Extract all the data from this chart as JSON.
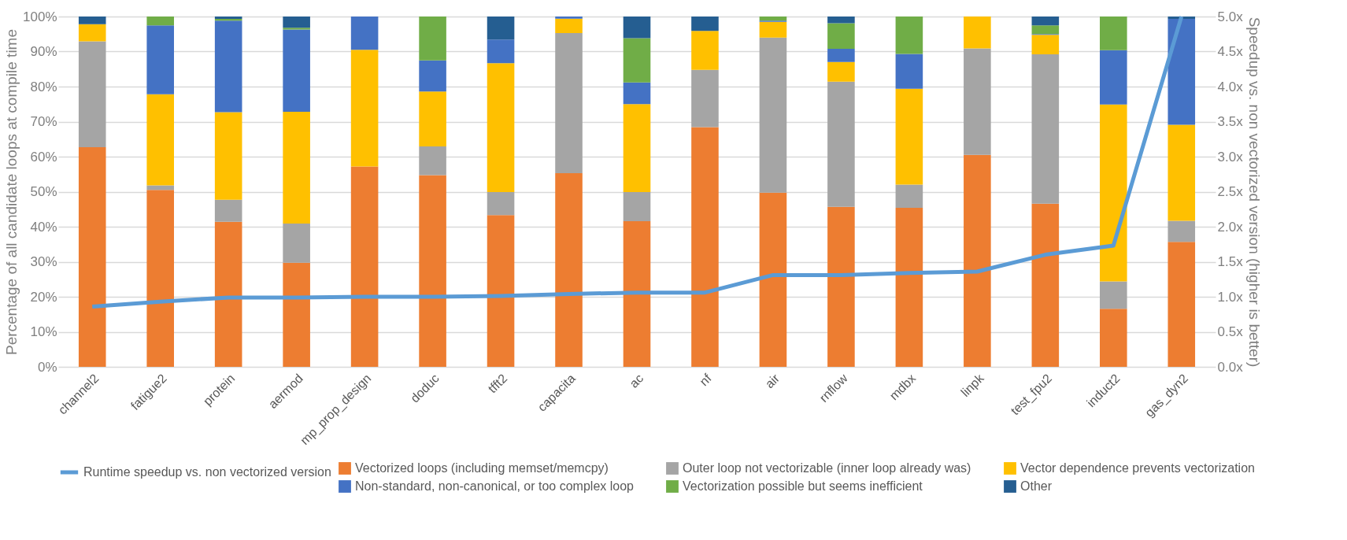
{
  "chart_data": {
    "type": "bar",
    "stacked": true,
    "ylabel": "Percentage of all candidate loops at compile time",
    "y2label": "Speedup vs. non vectorized version (higher is better)",
    "categories": [
      "channel2",
      "fatigue2",
      "protein",
      "aermod",
      "mp_prop_design",
      "doduc",
      "tfft2",
      "capacita",
      "ac",
      "nf",
      "air",
      "rnflow",
      "mdbx",
      "linpk",
      "test_fpu2",
      "induct2",
      "gas_dyn2"
    ],
    "series": [
      {
        "name": "Vectorized loops (including memset/memcpy)",
        "color": "#ed7d31",
        "values": [
          62.7,
          50.5,
          41.4,
          29.7,
          57.2,
          54.7,
          43.3,
          55.3,
          41.6,
          68.4,
          49.7,
          45.7,
          45.4,
          60.5,
          46.6,
          16.6,
          35.7
        ]
      },
      {
        "name": "Outer loop not vectorizable (inner loop already was)",
        "color": "#a5a5a5",
        "values": [
          30.2,
          1.3,
          6.3,
          11.2,
          0,
          8.2,
          6.6,
          40.0,
          8.3,
          16.4,
          44.3,
          35.7,
          6.6,
          30.4,
          42.6,
          7.8,
          6.0
        ]
      },
      {
        "name": "Vector dependence prevents vectorization",
        "color": "#ffc000",
        "values": [
          4.9,
          26.0,
          25.0,
          31.9,
          33.3,
          15.7,
          36.8,
          4.1,
          25.1,
          11.1,
          4.5,
          5.6,
          27.4,
          9.1,
          5.6,
          50.5,
          27.4
        ]
      },
      {
        "name": "Non-standard, non-canonical, or too complex loop",
        "color": "#4472c4",
        "values": [
          0,
          19.7,
          26.1,
          23.5,
          9.5,
          8.9,
          6.7,
          0.6,
          6.2,
          0,
          0.3,
          3.8,
          9.9,
          0,
          0.2,
          15.5,
          30.2
        ]
      },
      {
        "name": "Vectorization possible but seems inefficient",
        "color": "#70ad47",
        "values": [
          0,
          2.5,
          0.5,
          0.5,
          0,
          12.5,
          0,
          0,
          12.6,
          0,
          1.2,
          7.3,
          10.7,
          0,
          2.5,
          9.6,
          0
        ]
      },
      {
        "name": "Other",
        "color": "#255e91",
        "values": [
          2.2,
          0,
          0.7,
          3.2,
          0,
          0,
          6.6,
          0,
          6.2,
          4.1,
          0,
          1.9,
          0,
          0,
          2.5,
          0,
          0.7
        ]
      },
      {
        "name": "Runtime speedup vs. non vectorized version",
        "type": "line",
        "axis": "y2",
        "color": "#5b9bd5",
        "values": [
          0.86,
          0.93,
          0.99,
          0.99,
          1.0,
          1.0,
          1.01,
          1.04,
          1.06,
          1.06,
          1.31,
          1.31,
          1.34,
          1.36,
          1.6,
          1.73,
          5.0
        ]
      }
    ],
    "ylim": [
      0,
      100
    ],
    "yticks": [
      {
        "value": 0,
        "label": "0%"
      },
      {
        "value": 10,
        "label": "10%"
      },
      {
        "value": 20,
        "label": "20%"
      },
      {
        "value": 30,
        "label": "30%"
      },
      {
        "value": 40,
        "label": "40%"
      },
      {
        "value": 50,
        "label": "50%"
      },
      {
        "value": 60,
        "label": "60%"
      },
      {
        "value": 70,
        "label": "70%"
      },
      {
        "value": 80,
        "label": "80%"
      },
      {
        "value": 90,
        "label": "90%"
      },
      {
        "value": 100,
        "label": "100%"
      }
    ],
    "y2lim": [
      0,
      5
    ],
    "y2ticks": [
      {
        "value": 0,
        "label": "0.0x"
      },
      {
        "value": 0.5,
        "label": "0.5x"
      },
      {
        "value": 1,
        "label": "1.0x"
      },
      {
        "value": 1.5,
        "label": "1.5x"
      },
      {
        "value": 2,
        "label": "2.0x"
      },
      {
        "value": 2.5,
        "label": "2.5x"
      },
      {
        "value": 3,
        "label": "3.0x"
      },
      {
        "value": 3.5,
        "label": "3.5x"
      },
      {
        "value": 4,
        "label": "4.0x"
      },
      {
        "value": 4.5,
        "label": "4.5x"
      },
      {
        "value": 5,
        "label": "5.0x"
      }
    ],
    "grid": "y",
    "legend": "bottom",
    "line_style": "solid"
  }
}
